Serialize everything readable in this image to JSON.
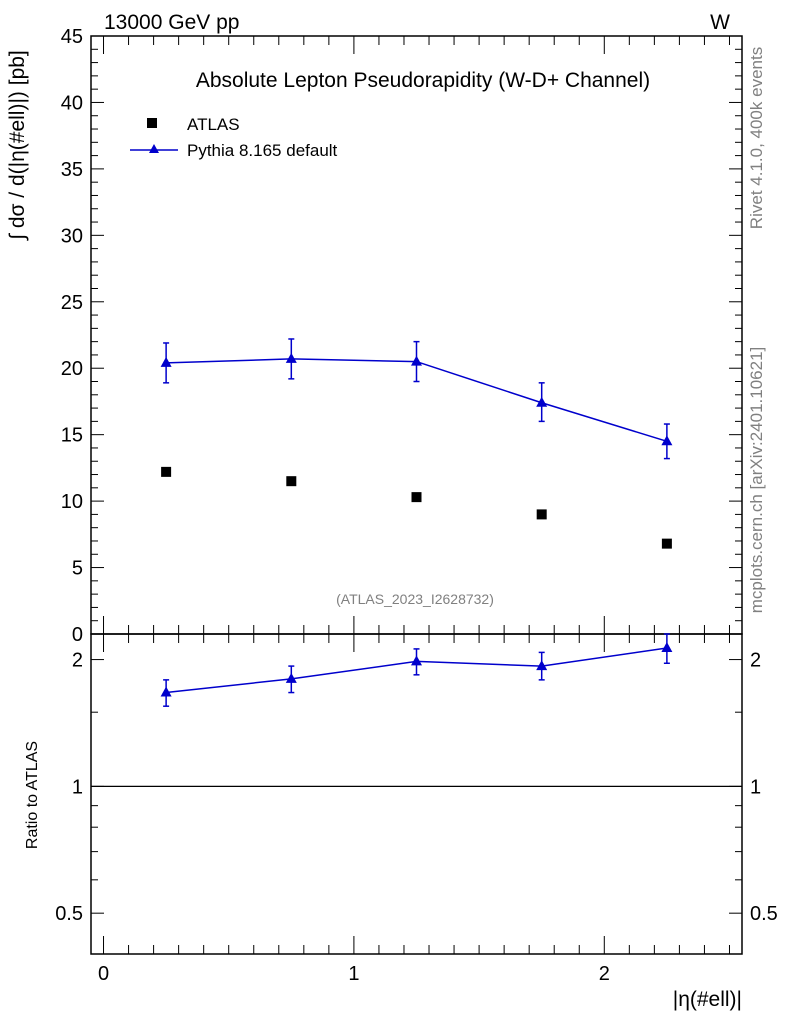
{
  "header": {
    "energy_label": "13000 GeV pp",
    "process_label": "W"
  },
  "side_text": {
    "rivet": "Rivet 4.1.0,  400k events",
    "mcplots": "mcplots.cern.ch [arXiv:2401.10621]"
  },
  "chart_data": [
    {
      "type": "scatter",
      "title": "Absolute Lepton Pseudorapidity (W-D+ Channel)",
      "analysis": "(ATLAS_2023_I2628732)",
      "ylabel": "∫ dσ / d(|η(#ell)|) [pb]",
      "xlim": [
        -0.05,
        2.55
      ],
      "ylim": [
        0,
        45
      ],
      "yticks": [
        0,
        5,
        10,
        15,
        20,
        25,
        30,
        35,
        40,
        45
      ],
      "ytick_labels": [
        "0",
        "5",
        "10",
        "15",
        "20",
        "25",
        "30",
        "35",
        "40",
        "45"
      ],
      "legend": [
        {
          "label": "ATLAS",
          "marker": "square",
          "color": "#000000"
        },
        {
          "label": "Pythia 8.165 default",
          "marker": "triangle",
          "color": "#0000cc"
        }
      ],
      "series": [
        {
          "name": "ATLAS",
          "x": [
            0.25,
            0.75,
            1.25,
            1.75,
            2.25
          ],
          "values": [
            12.2,
            11.5,
            10.3,
            9.0,
            6.8
          ]
        },
        {
          "name": "Pythia 8.165 default",
          "x": [
            0.25,
            0.75,
            1.25,
            1.75,
            2.25
          ],
          "values": [
            20.4,
            20.7,
            20.5,
            17.4,
            14.5
          ],
          "err_up": [
            1.5,
            1.5,
            1.5,
            1.5,
            1.3
          ],
          "err_down": [
            1.5,
            1.5,
            1.5,
            1.4,
            1.3
          ]
        }
      ]
    },
    {
      "type": "scatter",
      "ylabel": "Ratio to ATLAS",
      "xlabel": "|η(#ell)|",
      "xlim": [
        -0.05,
        2.55
      ],
      "ylim": [
        0.4,
        2.3
      ],
      "yscale": "log",
      "reference_line": 1,
      "xticks": [
        0,
        1,
        2
      ],
      "xtick_labels": [
        "0",
        "1",
        "2"
      ],
      "yticks": [
        0.5,
        1,
        2
      ],
      "ytick_labels": [
        "0.5",
        "1",
        "2"
      ],
      "series": [
        {
          "name": "Pythia 8.165 default",
          "x": [
            0.25,
            0.75,
            1.25,
            1.75,
            2.25
          ],
          "values": [
            1.67,
            1.8,
            1.98,
            1.93,
            2.13
          ],
          "err_up": [
            0.12,
            0.13,
            0.14,
            0.15,
            0.17
          ],
          "err_down": [
            0.12,
            0.13,
            0.14,
            0.14,
            0.17
          ]
        }
      ]
    }
  ]
}
